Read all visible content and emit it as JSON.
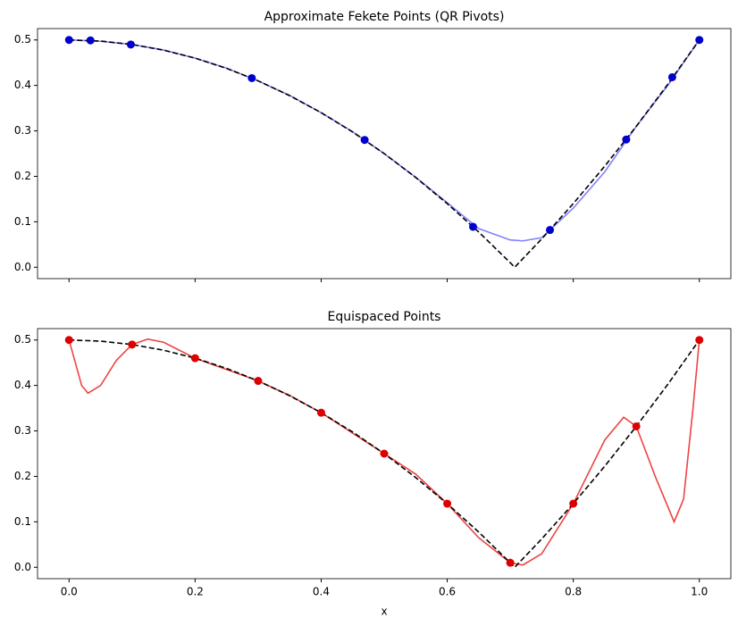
{
  "chart_data": [
    {
      "type": "line",
      "title": "Approximate Fekete Points (QR Pivots)",
      "xlim": [
        -0.05,
        1.05
      ],
      "ylim": [
        -0.025,
        0.525
      ],
      "xticks": [
        0,
        0.2,
        0.4,
        0.6,
        0.8,
        1
      ],
      "show_xtick_labels": false,
      "yticks": [
        {
          "value": 0,
          "label": "0.0"
        },
        {
          "value": 0.1,
          "label": "0.1"
        },
        {
          "value": 0.2,
          "label": "0.2"
        },
        {
          "value": 0.3,
          "label": "0.3"
        },
        {
          "value": 0.4,
          "label": "0.4"
        },
        {
          "value": 0.5,
          "label": "0.5"
        }
      ],
      "series": [
        {
          "style": "line",
          "color": "#8080ff",
          "x": [
            0,
            0.05,
            0.1,
            0.15,
            0.2,
            0.25,
            0.3,
            0.35,
            0.4,
            0.45,
            0.5,
            0.55,
            0.6,
            0.65,
            0.7,
            0.72,
            0.75,
            0.8,
            0.85,
            0.9,
            0.95,
            1
          ],
          "values": [
            0.5,
            0.497,
            0.49,
            0.478,
            0.46,
            0.438,
            0.41,
            0.378,
            0.34,
            0.298,
            0.25,
            0.198,
            0.142,
            0.085,
            0.06,
            0.058,
            0.065,
            0.13,
            0.21,
            0.31,
            0.4,
            0.5
          ]
        },
        {
          "style": "dashed",
          "color": "#000000",
          "x": [
            0,
            0.05,
            0.1,
            0.15,
            0.2,
            0.25,
            0.3,
            0.35,
            0.4,
            0.45,
            0.5,
            0.55,
            0.6,
            0.65,
            0.7,
            0.7071,
            0.75,
            0.8,
            0.85,
            0.9,
            0.95,
            1
          ],
          "values": [
            0.5,
            0.4975,
            0.49,
            0.4775,
            0.46,
            0.4375,
            0.41,
            0.3775,
            0.34,
            0.2975,
            0.25,
            0.1975,
            0.14,
            0.0775,
            0.01,
            0,
            0.0625,
            0.14,
            0.2225,
            0.31,
            0.4025,
            0.5
          ]
        },
        {
          "style": "points",
          "color": "#0000cc",
          "x": [
            0,
            0.034,
            0.098,
            0.29,
            0.469,
            0.641,
            0.763,
            0.884,
            0.957,
            1
          ],
          "values": [
            0.5,
            0.499,
            0.49,
            0.416,
            0.28,
            0.089,
            0.082,
            0.281,
            0.418,
            0.5
          ]
        }
      ]
    },
    {
      "type": "line",
      "title": "Equispaced Points",
      "xlabel": "x",
      "xlim": [
        -0.05,
        1.05
      ],
      "ylim": [
        -0.025,
        0.525
      ],
      "xticks": [
        {
          "value": 0,
          "label": "0.0"
        },
        {
          "value": 0.2,
          "label": "0.2"
        },
        {
          "value": 0.4,
          "label": "0.4"
        },
        {
          "value": 0.6,
          "label": "0.6"
        },
        {
          "value": 0.8,
          "label": "0.8"
        },
        {
          "value": 1,
          "label": "1.0"
        }
      ],
      "show_xtick_labels": true,
      "yticks": [
        {
          "value": 0,
          "label": "0.0"
        },
        {
          "value": 0.1,
          "label": "0.1"
        },
        {
          "value": 0.2,
          "label": "0.2"
        },
        {
          "value": 0.3,
          "label": "0.3"
        },
        {
          "value": 0.4,
          "label": "0.4"
        },
        {
          "value": 0.5,
          "label": "0.5"
        }
      ],
      "series": [
        {
          "style": "line",
          "color": "#ee4444",
          "x": [
            0,
            0.01,
            0.02,
            0.03,
            0.05,
            0.075,
            0.1,
            0.125,
            0.15,
            0.2,
            0.25,
            0.3,
            0.35,
            0.4,
            0.45,
            0.5,
            0.55,
            0.6,
            0.65,
            0.7,
            0.72,
            0.75,
            0.8,
            0.85,
            0.88,
            0.9,
            0.93,
            0.96,
            0.975,
            0.99,
            1
          ],
          "values": [
            0.5,
            0.45,
            0.4,
            0.383,
            0.4,
            0.455,
            0.49,
            0.502,
            0.495,
            0.46,
            0.435,
            0.41,
            0.378,
            0.34,
            0.295,
            0.25,
            0.205,
            0.14,
            0.065,
            0.01,
            0.005,
            0.03,
            0.14,
            0.28,
            0.33,
            0.31,
            0.2,
            0.1,
            0.15,
            0.35,
            0.5
          ]
        },
        {
          "style": "dashed",
          "color": "#000000",
          "x": [
            0,
            0.05,
            0.1,
            0.15,
            0.2,
            0.25,
            0.3,
            0.35,
            0.4,
            0.45,
            0.5,
            0.55,
            0.6,
            0.65,
            0.7,
            0.7071,
            0.75,
            0.8,
            0.85,
            0.9,
            0.95,
            1
          ],
          "values": [
            0.5,
            0.4975,
            0.49,
            0.4775,
            0.46,
            0.4375,
            0.41,
            0.3775,
            0.34,
            0.2975,
            0.25,
            0.1975,
            0.14,
            0.0775,
            0.01,
            0,
            0.0625,
            0.14,
            0.2225,
            0.31,
            0.4025,
            0.5
          ]
        },
        {
          "style": "points",
          "color": "#dd0000",
          "x": [
            0,
            0.1,
            0.2,
            0.3,
            0.4,
            0.5,
            0.6,
            0.7,
            0.8,
            0.9,
            1
          ],
          "values": [
            0.5,
            0.49,
            0.46,
            0.41,
            0.34,
            0.25,
            0.14,
            0.01,
            0.14,
            0.31,
            0.5
          ]
        }
      ]
    }
  ]
}
